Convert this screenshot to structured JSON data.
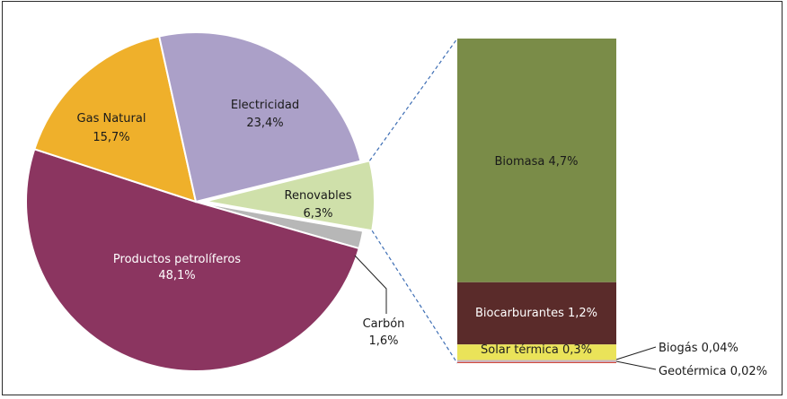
{
  "chart_data": [
    {
      "type": "pie",
      "slices": [
        {
          "name": "Productos petrolíferos",
          "label_name": "Productos petrolíferos",
          "label_value": "48,1%",
          "value": 48.1,
          "color": "#8b3560"
        },
        {
          "name": "Gas Natural",
          "label_name": "Gas Natural",
          "label_value": "15,7%",
          "value": 15.7,
          "color": "#efb02b"
        },
        {
          "name": "Electricidad",
          "label_name": "Electricidad",
          "label_value": "23,4%",
          "value": 23.4,
          "color": "#aba0c8"
        },
        {
          "name": "Renovables",
          "label_name": "Renovables",
          "label_value": "6,3%",
          "value": 6.3,
          "color": "#cfe0aa"
        },
        {
          "name": "Carbón",
          "label_name": "Carbón",
          "label_value": "1,6%",
          "value": 1.6,
          "color": "#b7b7b7"
        }
      ]
    },
    {
      "type": "bar",
      "stacked": true,
      "parent": "Renovables",
      "segments": [
        {
          "name": "Biomasa",
          "label": "Biomasa 4,7%",
          "value": 4.7,
          "color": "#7a8c48"
        },
        {
          "name": "Biocarburantes",
          "label": "Biocarburantes 1,2%",
          "value": 1.2,
          "color": "#5a2b2a"
        },
        {
          "name": "Solar térmica",
          "label": "Solar térmica 0,3%",
          "value": 0.3,
          "color": "#eae359"
        },
        {
          "name": "Biogás",
          "label": "Biogás 0,04%",
          "value": 0.04,
          "color": "#c9b6c6"
        },
        {
          "name": "Geotérmica",
          "label": "Geotérmica 0,02%",
          "value": 0.02,
          "color": "#d24a3c"
        }
      ]
    }
  ]
}
